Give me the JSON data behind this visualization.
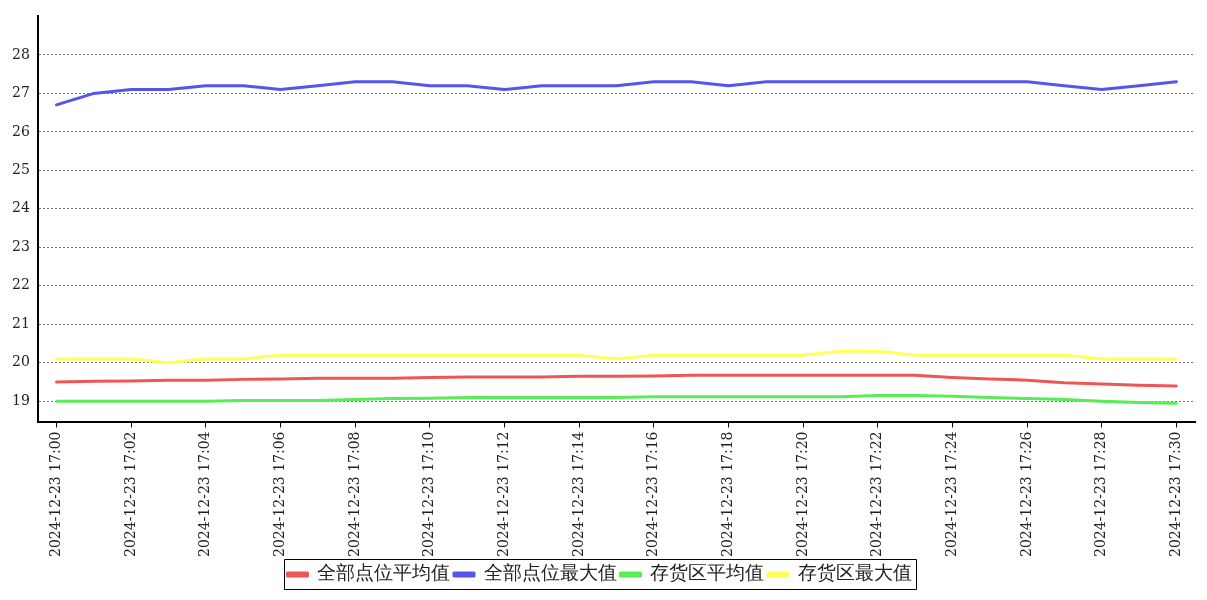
{
  "chart_data": {
    "type": "line",
    "categories": [
      "2024-12-23 17:00",
      null,
      "2024-12-23 17:02",
      null,
      "2024-12-23 17:04",
      null,
      "2024-12-23 17:06",
      null,
      "2024-12-23 17:08",
      null,
      "2024-12-23 17:10",
      null,
      "2024-12-23 17:12",
      null,
      "2024-12-23 17:14",
      null,
      "2024-12-23 17:16",
      null,
      "2024-12-23 17:18",
      null,
      "2024-12-23 17:20",
      null,
      "2024-12-23 17:22",
      null,
      "2024-12-23 17:24",
      null,
      "2024-12-23 17:26",
      null,
      "2024-12-23 17:28",
      null,
      "2024-12-23 17:30"
    ],
    "series": [
      {
        "name": "全部点位平均值",
        "color": "#ee5555",
        "values": [
          19.5,
          19.52,
          19.53,
          19.55,
          19.55,
          19.57,
          19.58,
          19.6,
          19.6,
          19.6,
          19.62,
          19.63,
          19.63,
          19.63,
          19.65,
          19.65,
          19.66,
          19.68,
          19.68,
          19.68,
          19.68,
          19.68,
          19.68,
          19.68,
          19.62,
          19.58,
          19.55,
          19.48,
          19.45,
          19.42,
          19.4
        ]
      },
      {
        "name": "全部点位最大值",
        "color": "#5555ee",
        "values": [
          26.7,
          27.0,
          27.1,
          27.1,
          27.2,
          27.2,
          27.1,
          27.2,
          27.3,
          27.3,
          27.2,
          27.2,
          27.1,
          27.2,
          27.2,
          27.2,
          27.3,
          27.3,
          27.2,
          27.3,
          27.3,
          27.3,
          27.3,
          27.3,
          27.3,
          27.3,
          27.3,
          27.2,
          27.1,
          27.2,
          27.3
        ]
      },
      {
        "name": "存货区平均值",
        "color": "#55ee55",
        "values": [
          19.0,
          19.0,
          19.0,
          19.0,
          19.0,
          19.02,
          19.02,
          19.02,
          19.05,
          19.07,
          19.08,
          19.1,
          19.1,
          19.1,
          19.1,
          19.1,
          19.12,
          19.12,
          19.12,
          19.12,
          19.12,
          19.12,
          19.15,
          19.15,
          19.13,
          19.1,
          19.07,
          19.05,
          19.0,
          18.97,
          18.95
        ]
      },
      {
        "name": "存货区最大值",
        "color": "#ffff55",
        "values": [
          20.1,
          20.1,
          20.1,
          20.0,
          20.1,
          20.1,
          20.2,
          20.2,
          20.2,
          20.2,
          20.2,
          20.2,
          20.2,
          20.2,
          20.2,
          20.1,
          20.2,
          20.2,
          20.2,
          20.2,
          20.2,
          20.3,
          20.3,
          20.2,
          20.2,
          20.2,
          20.2,
          20.2,
          20.1,
          20.1,
          20.1
        ]
      }
    ],
    "ylim": [
      18.45,
      29
    ],
    "yticks": [
      19,
      20,
      21,
      22,
      23,
      24,
      25,
      26,
      27,
      28
    ],
    "grid": "y",
    "legend": "bottom",
    "line_style": "solid",
    "marker": "none"
  }
}
